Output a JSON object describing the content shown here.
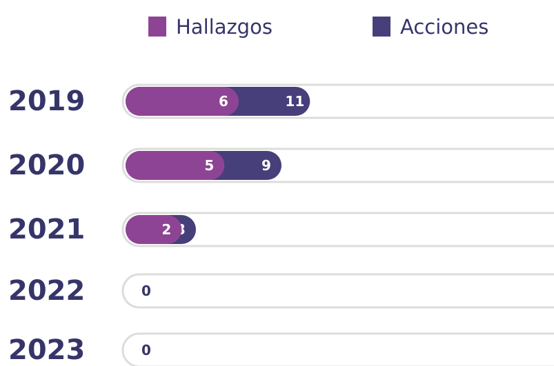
{
  "chart_data": {
    "type": "bar",
    "orientation": "horizontal",
    "stacking": "overlap",
    "categories": [
      "2019",
      "2020",
      "2021",
      "2022",
      "2023"
    ],
    "series": [
      {
        "name": "Acciones",
        "color": "#463f7a",
        "values": [
          11,
          9,
          3,
          0,
          0
        ]
      },
      {
        "name": "Hallazgos",
        "color": "#8e4494",
        "values": [
          6,
          5,
          2,
          0,
          0
        ]
      }
    ],
    "xlim": [
      0,
      30
    ],
    "legend": "top"
  }
}
